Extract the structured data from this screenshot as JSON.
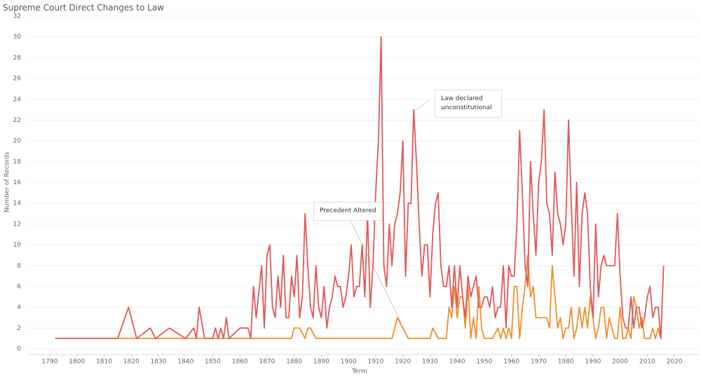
{
  "chart_data": {
    "type": "line",
    "title": "Supreme Court Direct Changes to Law",
    "x_label": "Term",
    "y_label": "Number of Records",
    "xlim": [
      1782,
      2029
    ],
    "ylim": [
      0,
      32
    ],
    "xticks": [
      1790,
      1800,
      1810,
      1820,
      1830,
      1840,
      1850,
      1860,
      1870,
      1880,
      1890,
      1900,
      1910,
      1920,
      1930,
      1940,
      1950,
      1960,
      1970,
      1980,
      1990,
      2000,
      2010,
      2020
    ],
    "yticks": [
      0,
      2,
      4,
      6,
      8,
      10,
      12,
      14,
      16,
      18,
      20,
      22,
      24,
      26,
      28,
      30,
      32
    ],
    "grid": true,
    "series": [
      {
        "name": "Law declared unconstitutional",
        "color": "#e15759",
        "x": [
          1792,
          1815,
          1819,
          1822,
          1827,
          1829,
          1834,
          1840,
          1843,
          1844,
          1845,
          1847,
          1850,
          1851,
          1852,
          1853,
          1854,
          1855,
          1856,
          1860,
          1863,
          1864,
          1865,
          1866,
          1868,
          1869,
          1870,
          1871,
          1872,
          1873,
          1874,
          1875,
          1876,
          1877,
          1878,
          1879,
          1880,
          1881,
          1882,
          1883,
          1884,
          1885,
          1886,
          1887,
          1888,
          1889,
          1890,
          1891,
          1892,
          1893,
          1894,
          1895,
          1896,
          1897,
          1898,
          1899,
          1900,
          1901,
          1902,
          1903,
          1904,
          1905,
          1906,
          1907,
          1908,
          1909,
          1910,
          1911,
          1912,
          1913,
          1914,
          1915,
          1916,
          1917,
          1918,
          1919,
          1920,
          1921,
          1922,
          1923,
          1924,
          1925,
          1926,
          1927,
          1928,
          1929,
          1930,
          1931,
          1932,
          1933,
          1934,
          1935,
          1936,
          1937,
          1938,
          1939,
          1940,
          1941,
          1942,
          1943,
          1944,
          1945,
          1946,
          1947,
          1948,
          1949,
          1950,
          1951,
          1952,
          1953,
          1954,
          1955,
          1956,
          1957,
          1958,
          1959,
          1960,
          1961,
          1962,
          1963,
          1964,
          1965,
          1966,
          1967,
          1968,
          1969,
          1970,
          1971,
          1972,
          1973,
          1974,
          1975,
          1976,
          1977,
          1978,
          1979,
          1980,
          1981,
          1982,
          1983,
          1984,
          1985,
          1986,
          1987,
          1988,
          1989,
          1990,
          1991,
          1992,
          1993,
          1994,
          1995,
          1996,
          1997,
          1998,
          1999,
          2000,
          2001,
          2002,
          2003,
          2004,
          2005,
          2006,
          2007,
          2008,
          2009,
          2010,
          2011,
          2012,
          2013,
          2014,
          2015,
          2016
        ],
        "values": [
          1,
          1,
          4,
          1,
          2,
          1,
          2,
          1,
          2,
          1,
          4,
          1,
          1,
          2,
          1,
          2,
          1,
          3,
          1,
          2,
          2,
          1,
          6,
          3,
          8,
          2,
          9,
          10,
          4,
          3,
          7,
          4,
          9,
          3,
          3,
          7,
          5,
          9,
          3,
          5,
          13,
          8,
          4,
          3,
          8,
          4,
          3,
          6,
          2,
          4,
          5,
          7,
          6,
          6,
          4,
          5,
          7,
          10,
          5,
          6,
          6,
          10,
          5,
          13,
          4,
          8,
          15,
          20,
          30,
          8,
          6,
          12,
          8,
          12,
          13,
          15,
          20,
          7,
          14,
          14,
          23,
          18,
          12,
          7,
          10,
          10,
          5,
          11,
          14,
          15,
          8,
          6,
          6,
          8,
          4,
          8,
          4,
          8,
          5,
          3,
          7,
          5,
          6,
          7,
          4,
          4,
          5,
          5,
          4,
          6,
          3,
          4,
          4,
          8,
          2,
          8,
          7,
          7,
          12,
          21,
          15,
          8,
          6,
          18,
          13,
          9,
          16,
          18,
          23,
          14,
          13,
          9,
          17,
          13,
          12,
          10,
          12,
          22,
          14,
          7,
          16,
          6,
          13,
          15,
          13,
          6,
          3,
          12,
          5,
          8,
          9,
          8,
          8,
          8,
          8,
          13,
          7,
          3,
          2,
          2,
          5,
          2,
          4,
          4,
          2,
          3,
          5,
          6,
          3,
          4,
          4,
          1,
          8
        ]
      },
      {
        "name": "Precedent Altered",
        "color": "#f28e2b",
        "x": [
          1792,
          1879,
          1880,
          1882,
          1884,
          1885,
          1886,
          1888,
          1916,
          1918,
          1922,
          1930,
          1931,
          1933,
          1936,
          1937,
          1938,
          1939,
          1940,
          1941,
          1942,
          1943,
          1944,
          1945,
          1946,
          1947,
          1948,
          1949,
          1950,
          1953,
          1955,
          1956,
          1957,
          1958,
          1959,
          1960,
          1961,
          1962,
          1963,
          1964,
          1965,
          1966,
          1967,
          1968,
          1969,
          1973,
          1974,
          1975,
          1976,
          1977,
          1978,
          1979,
          1980,
          1981,
          1982,
          1983,
          1984,
          1985,
          1986,
          1987,
          1988,
          1989,
          1990,
          1991,
          1992,
          1993,
          1994,
          1995,
          1996,
          1997,
          1998,
          1999,
          2000,
          2001,
          2002,
          2003,
          2004,
          2005,
          2006,
          2007,
          2008,
          2009,
          2010,
          2011,
          2012,
          2013,
          2014,
          2015
        ],
        "values": [
          1,
          1,
          2,
          2,
          1,
          2,
          2,
          1,
          1,
          3,
          1,
          1,
          2,
          1,
          1,
          4,
          3,
          6,
          3,
          5,
          5,
          2,
          6,
          1,
          3,
          1,
          6,
          2,
          1,
          1,
          2,
          1,
          2,
          1,
          2,
          1,
          6,
          6,
          1,
          4,
          6,
          9,
          5,
          6,
          3,
          3,
          2,
          8,
          5,
          2,
          3,
          1,
          2,
          2,
          4,
          1,
          2,
          4,
          2,
          4,
          2,
          5,
          3,
          1,
          2,
          4,
          4,
          1,
          3,
          2,
          1,
          1,
          4,
          1,
          1,
          2,
          1,
          5,
          4,
          2,
          3,
          1,
          1,
          1,
          2,
          1,
          2,
          1
        ]
      }
    ]
  }
}
